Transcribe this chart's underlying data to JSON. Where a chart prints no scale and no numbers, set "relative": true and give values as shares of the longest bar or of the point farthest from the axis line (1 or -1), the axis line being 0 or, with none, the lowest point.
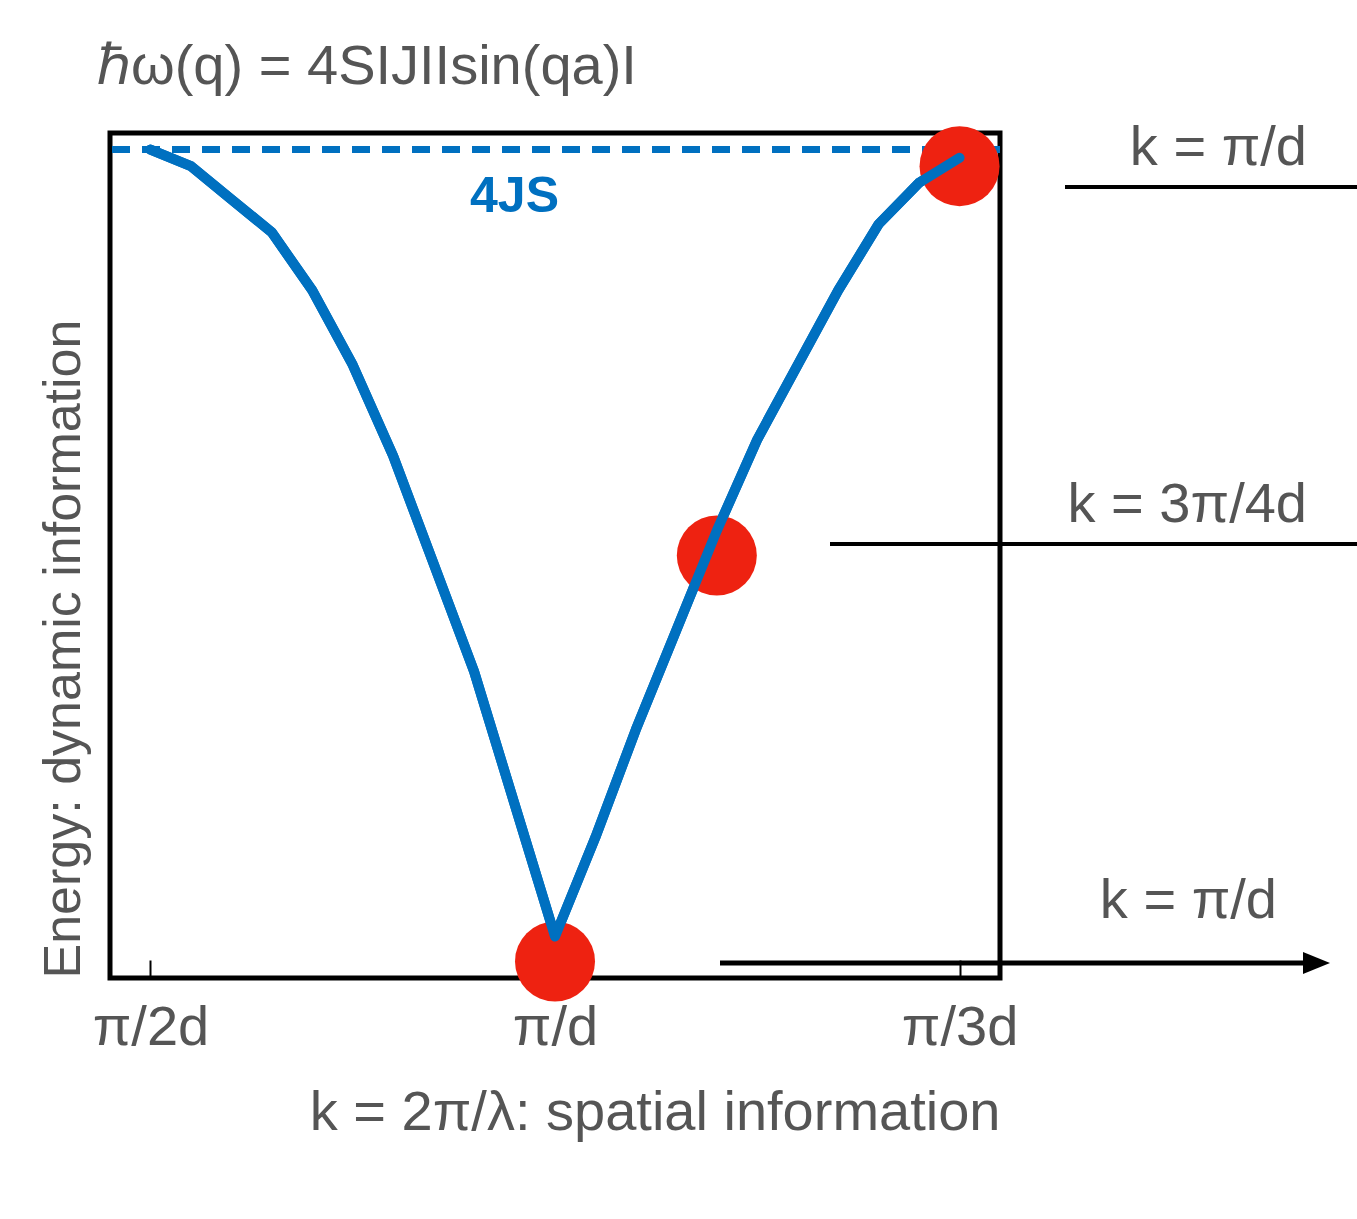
{
  "chart_data": {
    "type": "line",
    "title": "ℏω(q) = 4SIJIIsin(qa)I",
    "xlabel": "k = 2π/λ: spatial information",
    "ylabel": "Energy: dynamic information",
    "relative": true,
    "categories": [
      "π/2d",
      null,
      null,
      null,
      null,
      null,
      null,
      null,
      null,
      null,
      "π/d",
      null,
      null,
      null,
      null,
      null,
      null,
      null,
      null,
      null,
      "π/3d"
    ],
    "series": [
      {
        "color": "#0070c0",
        "values": [
          1.0,
          0.98,
          0.94,
          0.9,
          0.83,
          0.74,
          0.63,
          0.5,
          0.37,
          0.21,
          0.05,
          0.17,
          0.3,
          0.42,
          0.54,
          0.65,
          0.74,
          0.83,
          0.91,
          0.96,
          0.99
        ]
      },
      {
        "type": "scatter",
        "color": "#ee2211",
        "marker": "circle",
        "values": [
          null,
          null,
          null,
          null,
          null,
          null,
          null,
          null,
          null,
          null,
          0.02,
          null,
          null,
          null,
          0.51,
          null,
          null,
          null,
          null,
          null,
          0.98
        ]
      }
    ],
    "ref_lines": [
      {
        "axis": "y",
        "value": 1.0,
        "label": "4JS",
        "color": "#0070c0",
        "line_style": "dashed"
      }
    ],
    "annotations": [
      "k = π/d",
      "k = 3π/4d",
      "k = π/d"
    ]
  }
}
